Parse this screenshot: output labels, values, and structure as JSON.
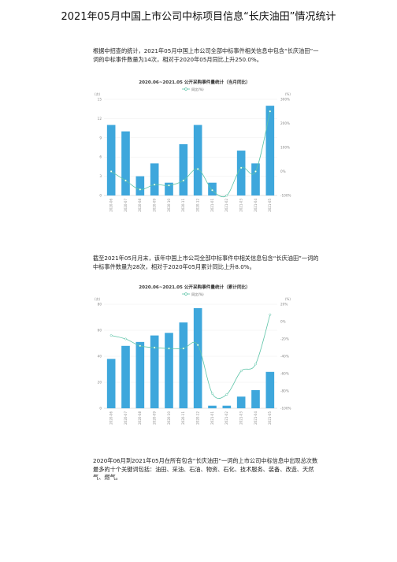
{
  "page": {
    "title": "2021年05月中国上市公司中标项目信息“长庆油田”情况统计",
    "para1": "根据中招查的统计，2021年05月中国上市公司全部中标事件相关信息中包含“长庆油田”一词的中标事件数量为14次，相对于2020年05月同比上升250.0%。",
    "para2": "截至2021年05月月末，该年中国上市公司全部中标事件中相关信息包含“长庆油田”一词的中标事件数量为28次，相对于2020年05月累计同比上升8.0%。",
    "para3": "2020年06月到2021年05月在所有包含“长庆油田”一词的上市公司中标信息中出现总次数最多的十个关键词包括：油田、采油、石油、物资、石化、技术服务、装备、改造、天然气、燃气。"
  },
  "chart_data": [
    {
      "type": "bar",
      "title": "2020.06~2021.05 公开采购事件量统计（当月同比）",
      "legend": "同比(%)",
      "yunit_left": "(次)",
      "yunit_right": "(%)",
      "categories": [
        "2020-06",
        "2020-07",
        "2020-08",
        "2020-09",
        "2020-10",
        "2020-11",
        "2020-12",
        "2021-01",
        "2021-02",
        "2021-03",
        "2021-04",
        "2021-05"
      ],
      "series": [
        {
          "kind": "bar",
          "values": [
            11,
            10,
            3,
            5,
            2,
            8,
            11,
            2,
            0,
            7,
            5,
            14
          ]
        },
        {
          "kind": "line",
          "values": [
            0,
            -38,
            -75,
            -55,
            -58,
            -38,
            10,
            -78,
            -100,
            15,
            0,
            250
          ]
        }
      ],
      "ylim": [
        0,
        15
      ],
      "yticks": [
        0,
        3,
        6,
        9,
        12,
        15
      ],
      "y2lim": [
        -100,
        300
      ],
      "y2ticks": [
        -100,
        0,
        100,
        200,
        300
      ]
    },
    {
      "type": "bar",
      "title": "2020.06~2021.05 公开采购事件量统计（累计同比）",
      "legend": "同比(%)",
      "yunit_left": "(次)",
      "yunit_right": "(%)",
      "categories": [
        "2020-06",
        "2020-07",
        "2020-08",
        "2020-09",
        "2020-10",
        "2020-11",
        "2020-12",
        "2021-01",
        "2021-02",
        "2021-03",
        "2021-04",
        "2021-05"
      ],
      "series": [
        {
          "kind": "bar",
          "values": [
            38,
            48,
            51,
            56,
            58,
            66,
            77,
            2,
            2,
            9,
            14,
            28
          ]
        },
        {
          "kind": "line",
          "values": [
            -16,
            -20,
            -28,
            -30,
            -31,
            -31,
            -27,
            -83,
            -84,
            -57,
            -49,
            8
          ]
        }
      ],
      "ylim": [
        0,
        80
      ],
      "yticks": [
        0,
        20,
        40,
        60,
        80
      ],
      "y2lim": [
        -100,
        20
      ],
      "y2ticks": [
        -100,
        -80,
        -60,
        -40,
        -20,
        0,
        20
      ]
    }
  ]
}
